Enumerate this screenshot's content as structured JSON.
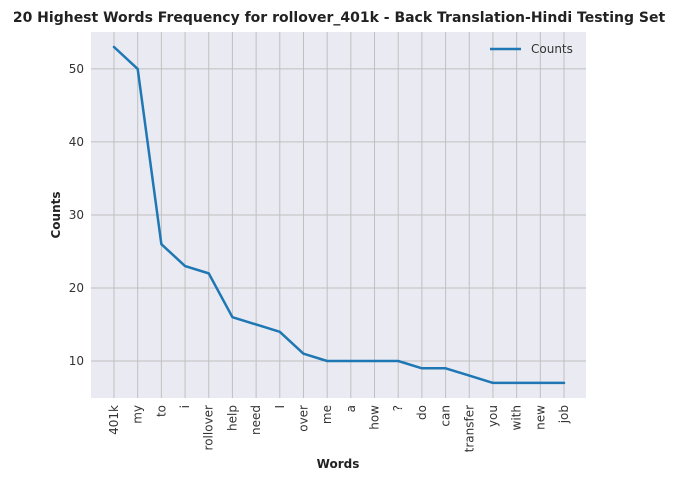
{
  "chart_data": {
    "type": "line",
    "title": "20 Highest Words Frequency for rollover_401k - Back Translation-Hindi Testing Set",
    "xlabel": "Words",
    "ylabel": "Counts",
    "categories": [
      "401k",
      "my",
      "to",
      "i",
      "rollover",
      "help",
      "need",
      "I",
      "over",
      "me",
      "a",
      "how",
      "?",
      "do",
      "can",
      "transfer",
      "you",
      "with",
      "new",
      "job"
    ],
    "series": [
      {
        "name": "Counts",
        "color": "#1f77b4",
        "values": [
          53,
          50,
          26,
          23,
          22,
          16,
          15,
          14,
          11,
          10,
          10,
          10,
          10,
          9,
          9,
          8,
          7,
          7,
          7,
          7
        ]
      }
    ],
    "ylim": [
      5,
      55
    ],
    "yticks": [
      "10",
      "20",
      "30",
      "40",
      "50"
    ],
    "grid": true,
    "legend_position": "top-right",
    "colors": {
      "plot_background": "#eaeaf2",
      "grid": "#c0c0c0"
    }
  }
}
